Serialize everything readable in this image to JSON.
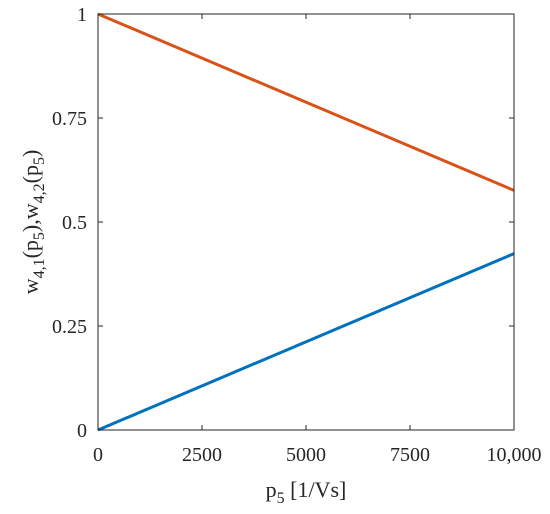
{
  "chart_data": {
    "type": "line",
    "xlabel": {
      "base": "p",
      "sub": "5",
      "rest": " [1/Vs]"
    },
    "ylabel": {
      "parts": [
        {
          "t": "w",
          "sub": "4,1"
        },
        {
          "t": "(p",
          "sub": "5"
        },
        {
          "t": "),w",
          "sub": "4,2"
        },
        {
          "t": "(p",
          "sub": "5"
        },
        {
          "t": ")"
        }
      ]
    },
    "xlim": [
      0,
      10000
    ],
    "ylim": [
      0,
      1
    ],
    "xticks": [
      0,
      2500,
      5000,
      7500,
      10000
    ],
    "xtick_labels": [
      "0",
      "2500",
      "5000",
      "7500",
      "10,000"
    ],
    "yticks": [
      0,
      0.25,
      0.5,
      0.75,
      1
    ],
    "ytick_labels": [
      "0",
      "0.25",
      "0.5",
      "0.75",
      "1"
    ],
    "grid": false,
    "series": [
      {
        "x": [
          0,
          10000
        ],
        "y": [
          0,
          0.424
        ],
        "color": "#0072BD"
      },
      {
        "x": [
          0,
          10000
        ],
        "y": [
          1,
          0.576
        ],
        "color": "#D95319"
      }
    ]
  }
}
